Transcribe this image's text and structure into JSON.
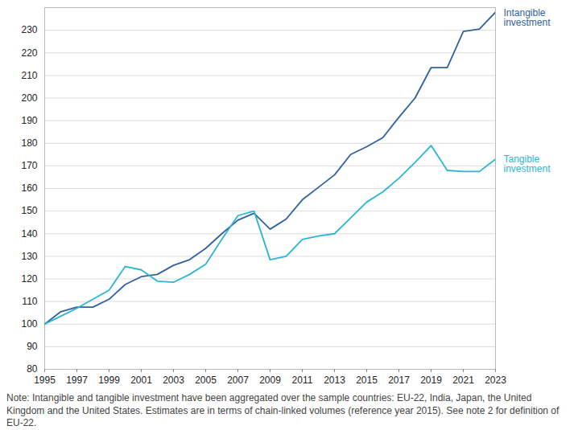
{
  "chart_data": {
    "type": "line",
    "x": [
      1995,
      1996,
      1997,
      1998,
      1999,
      2000,
      2001,
      2002,
      2003,
      2004,
      2005,
      2006,
      2007,
      2008,
      2009,
      2010,
      2011,
      2012,
      2013,
      2014,
      2015,
      2016,
      2017,
      2018,
      2019,
      2020,
      2021,
      2022,
      2023
    ],
    "series": [
      {
        "name": "Intangible investment",
        "color": "#30609f",
        "values": [
          100,
          105.5,
          107.5,
          107.5,
          111,
          117.5,
          121,
          122,
          126,
          128.5,
          133.5,
          140,
          146,
          149,
          142,
          146.5,
          155,
          160.5,
          166,
          175,
          178.5,
          182.5,
          191.5,
          200,
          213.5,
          213.5,
          229.5,
          230.5,
          238
        ]
      },
      {
        "name": "Tangible investment",
        "color": "#2bb5d5",
        "values": [
          100,
          103.5,
          107,
          111,
          115,
          125.5,
          124,
          119,
          118.5,
          122,
          126.5,
          137.5,
          148,
          150,
          128.5,
          130,
          137.5,
          139,
          140,
          147,
          154,
          158.5,
          164.5,
          171.5,
          179,
          168,
          167.5,
          167.5,
          173
        ]
      }
    ],
    "xlim": [
      1995,
      2023
    ],
    "xticks": [
      1995,
      1997,
      1999,
      2001,
      2003,
      2005,
      2007,
      2009,
      2011,
      2013,
      2015,
      2017,
      2019,
      2021,
      2023
    ],
    "ylim": [
      80,
      240
    ],
    "yticks": [
      80,
      90,
      100,
      110,
      120,
      130,
      140,
      150,
      160,
      170,
      180,
      190,
      200,
      210,
      220,
      230
    ],
    "grid": true,
    "note": "Note: Intangible and tangible investment have been aggregated over the sample countries: EU-22, India, Japan, the United Kingdom and the United States. Estimates are in terms of chain-linked volumes (reference year 2015). See note 2 for definition of EU-22."
  }
}
